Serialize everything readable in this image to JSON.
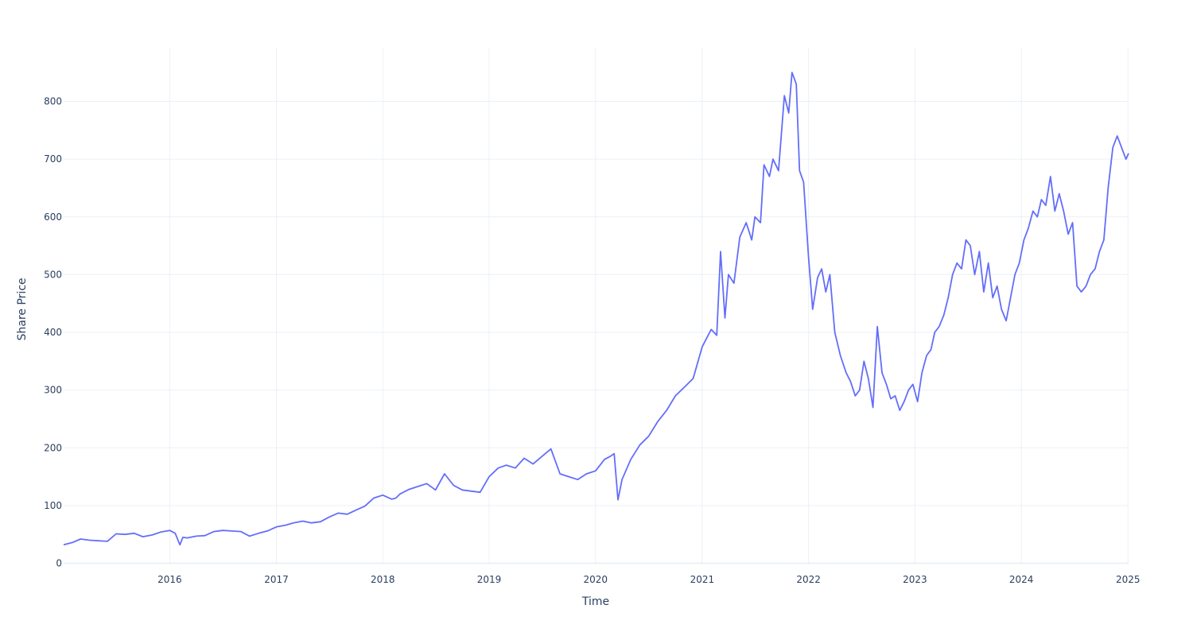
{
  "chart_data": {
    "type": "line",
    "title": "",
    "xlabel": "Time",
    "ylabel": "Share Price",
    "xlim": [
      "2015-01-02",
      "2025-01-03"
    ],
    "ylim": [
      -2,
      893
    ],
    "x_ticks": [
      "2016",
      "2017",
      "2018",
      "2019",
      "2020",
      "2021",
      "2022",
      "2023",
      "2024",
      "2025"
    ],
    "y_ticks": [
      0,
      100,
      200,
      300,
      400,
      500,
      600,
      700,
      800
    ],
    "grid": true,
    "legend": "none",
    "colors": {
      "line": "#636efa",
      "grid": "#ebf0f8",
      "text": "#2a3f5f"
    },
    "series": [
      {
        "x": [
          "2015-01-02",
          "2015-02-01",
          "2015-03-01",
          "2015-04-01",
          "2015-05-01",
          "2015-06-01",
          "2015-07-01",
          "2015-08-01",
          "2015-09-01",
          "2015-10-01",
          "2015-11-01",
          "2015-12-01",
          "2016-01-01",
          "2016-01-20",
          "2016-02-05",
          "2016-02-15",
          "2016-03-01",
          "2016-04-01",
          "2016-05-01",
          "2016-06-01",
          "2016-07-01",
          "2016-08-01",
          "2016-09-01",
          "2016-10-01",
          "2016-11-01",
          "2016-12-01",
          "2017-01-01",
          "2017-02-01",
          "2017-03-01",
          "2017-04-01",
          "2017-05-01",
          "2017-06-01",
          "2017-07-01",
          "2017-08-01",
          "2017-09-01",
          "2017-10-01",
          "2017-11-01",
          "2017-12-01",
          "2018-01-01",
          "2018-02-01",
          "2018-02-15",
          "2018-03-01",
          "2018-04-01",
          "2018-05-01",
          "2018-06-01",
          "2018-07-01",
          "2018-08-01",
          "2018-09-01",
          "2018-10-01",
          "2018-11-01",
          "2018-12-01",
          "2019-01-01",
          "2019-02-01",
          "2019-03-01",
          "2019-04-01",
          "2019-05-01",
          "2019-06-01",
          "2019-07-01",
          "2019-08-01",
          "2019-09-01",
          "2019-10-01",
          "2019-11-01",
          "2019-12-01",
          "2020-01-01",
          "2020-02-01",
          "2020-02-20",
          "2020-03-05",
          "2020-03-18",
          "2020-04-01",
          "2020-05-01",
          "2020-06-01",
          "2020-07-01",
          "2020-08-01",
          "2020-09-01",
          "2020-10-01",
          "2020-11-01",
          "2020-12-01",
          "2021-01-01",
          "2021-02-01",
          "2021-02-20",
          "2021-03-05",
          "2021-03-20",
          "2021-04-01",
          "2021-04-20",
          "2021-05-10",
          "2021-06-01",
          "2021-06-20",
          "2021-07-01",
          "2021-07-20",
          "2021-08-01",
          "2021-08-20",
          "2021-09-01",
          "2021-09-20",
          "2021-10-10",
          "2021-10-25",
          "2021-11-05",
          "2021-11-20",
          "2021-12-01",
          "2021-12-15",
          "2022-01-01",
          "2022-01-15",
          "2022-02-01",
          "2022-02-15",
          "2022-03-01",
          "2022-03-15",
          "2022-04-01",
          "2022-04-20",
          "2022-05-10",
          "2022-05-25",
          "2022-06-10",
          "2022-06-25",
          "2022-07-10",
          "2022-07-25",
          "2022-08-10",
          "2022-08-25",
          "2022-09-10",
          "2022-09-25",
          "2022-10-10",
          "2022-10-25",
          "2022-11-10",
          "2022-11-25",
          "2022-12-10",
          "2022-12-25",
          "2023-01-10",
          "2023-01-25",
          "2023-02-10",
          "2023-02-25",
          "2023-03-10",
          "2023-03-25",
          "2023-04-10",
          "2023-04-25",
          "2023-05-10",
          "2023-05-25",
          "2023-06-10",
          "2023-06-25",
          "2023-07-10",
          "2023-07-25",
          "2023-08-10",
          "2023-08-25",
          "2023-09-10",
          "2023-09-25",
          "2023-10-10",
          "2023-10-25",
          "2023-11-10",
          "2023-11-25",
          "2023-12-10",
          "2023-12-25",
          "2024-01-10",
          "2024-01-25",
          "2024-02-10",
          "2024-02-25",
          "2024-03-10",
          "2024-03-25",
          "2024-04-10",
          "2024-04-25",
          "2024-05-10",
          "2024-05-25",
          "2024-06-10",
          "2024-06-25",
          "2024-07-10",
          "2024-07-25",
          "2024-08-10",
          "2024-08-25",
          "2024-09-10",
          "2024-09-25",
          "2024-10-10",
          "2024-10-25",
          "2024-11-10",
          "2024-11-25",
          "2024-12-10",
          "2024-12-25",
          "2025-01-03"
        ],
        "y": [
          32,
          36,
          42,
          40,
          39,
          38,
          51,
          50,
          52,
          46,
          49,
          54,
          57,
          52,
          32,
          45,
          44,
          47,
          48,
          55,
          57,
          56,
          55,
          47,
          52,
          56,
          63,
          66,
          70,
          73,
          70,
          72,
          80,
          87,
          85,
          92,
          99,
          113,
          118,
          111,
          113,
          120,
          128,
          133,
          138,
          127,
          155,
          135,
          127,
          125,
          123,
          150,
          165,
          170,
          165,
          182,
          172,
          185,
          198,
          155,
          150,
          145,
          155,
          160,
          180,
          185,
          190,
          110,
          145,
          180,
          205,
          220,
          245,
          265,
          290,
          305,
          320,
          375,
          405,
          395,
          540,
          425,
          500,
          485,
          565,
          590,
          560,
          600,
          590,
          690,
          670,
          700,
          680,
          810,
          780,
          850,
          830,
          680,
          660,
          530,
          440,
          495,
          510,
          470,
          500,
          400,
          360,
          330,
          315,
          290,
          300,
          350,
          320,
          270,
          410,
          330,
          310,
          285,
          290,
          265,
          280,
          300,
          310,
          280,
          330,
          360,
          370,
          400,
          410,
          430,
          460,
          500,
          520,
          510,
          560,
          550,
          500,
          540,
          470,
          520,
          460,
          480,
          440,
          420,
          460,
          500,
          520,
          560,
          580,
          610,
          600,
          630,
          620,
          670,
          610,
          640,
          610,
          570,
          590,
          480,
          470,
          480,
          500,
          510,
          540,
          560,
          650,
          720,
          740,
          720,
          700,
          710
        ]
      }
    ]
  }
}
